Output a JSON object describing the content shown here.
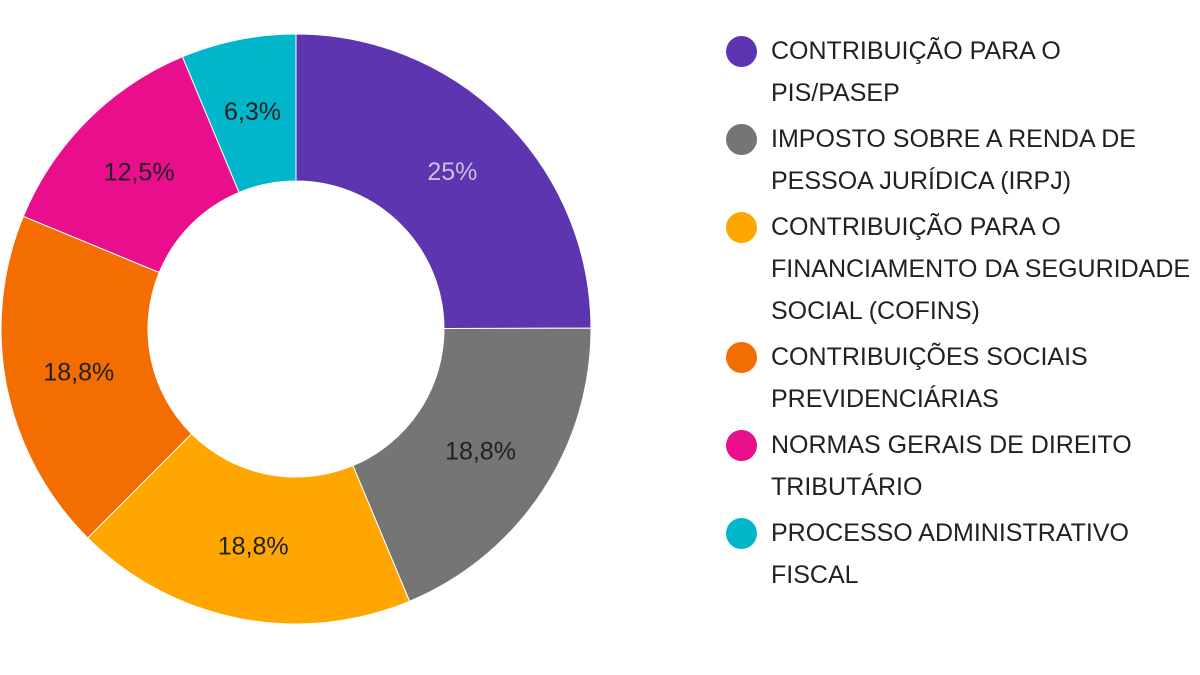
{
  "chart_data": {
    "type": "pie",
    "donut": true,
    "legend_position": "right",
    "categories": [
      "CONTRIBUIÇÃO PARA O PIS/PASEP",
      "IMPOSTO SOBRE A RENDA DE PESSOA JURÍDICA (IRPJ)",
      "CONTRIBUIÇÃO PARA O FINANCIAMENTO DA SEGURIDADE SOCIAL (COFINS)",
      "CONTRIBUIÇÕES SOCIAIS PREVIDENCIÁRIAS",
      "NORMAS GERAIS DE DIREITO TRIBUTÁRIO",
      "PROCESSO ADMINISTRATIVO FISCAL"
    ],
    "values": [
      25,
      18.8,
      18.8,
      18.8,
      12.5,
      6.3
    ],
    "data_labels": [
      "25%",
      "18,8%",
      "18,8%",
      "18,8%",
      "12,5%",
      "6,3%"
    ],
    "colors": [
      "#5e35b1",
      "#757575",
      "#ffa600",
      "#f46d00",
      "#e90e8b",
      "#00b6cb"
    ],
    "label_colors": [
      "#c8c0dc",
      "#212121",
      "#212121",
      "#212121",
      "#212121",
      "#212121"
    ]
  }
}
